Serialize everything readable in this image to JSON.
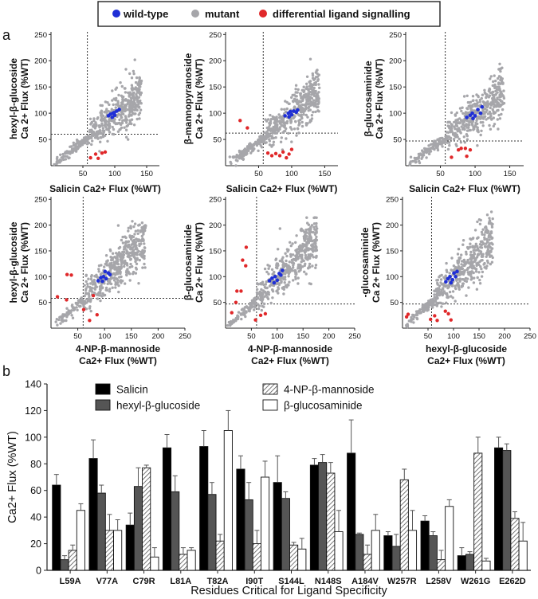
{
  "top_legend": [
    {
      "label": "wild-type",
      "color": "#1f2fd6"
    },
    {
      "label": "mutant",
      "color": "#a6a6aa"
    },
    {
      "label": "differential ligand signalling",
      "color": "#e0282a"
    }
  ],
  "panel_labels": {
    "a": "a",
    "b": "b"
  },
  "chart_data": [
    {
      "type": "scatter",
      "id": "s1",
      "title": "",
      "xlabel": [
        "Salicin Ca2+ Flux (%WT)"
      ],
      "ylabel": [
        "hexyl-β-glucoside",
        "Ca 2+ Flux (%WT)"
      ],
      "xlim": [
        0,
        170
      ],
      "ylim": [
        0,
        255
      ],
      "xticks": [
        "50",
        "100",
        "150"
      ],
      "yticks": [
        "50",
        "100",
        "150",
        "200",
        "250"
      ],
      "threshold_x": 57,
      "threshold_y": 60,
      "wildtype": [
        [
          90,
          95
        ],
        [
          93,
          98
        ],
        [
          97,
          100
        ],
        [
          100,
          96
        ],
        [
          103,
          104
        ],
        [
          96,
          92
        ],
        [
          99,
          101
        ],
        [
          107,
          107
        ]
      ],
      "differential": [
        [
          62,
          15
        ],
        [
          70,
          22
        ],
        [
          74,
          14
        ],
        [
          80,
          24
        ],
        [
          85,
          26
        ]
      ]
    },
    {
      "type": "scatter",
      "id": "s2",
      "title": "",
      "xlabel": [
        "Salicin Ca2+ Flux (%WT)"
      ],
      "ylabel": [
        "β-mannopyranoside",
        "Ca 2+ Flux (%WT)"
      ],
      "xlim": [
        0,
        170
      ],
      "ylim": [
        0,
        255
      ],
      "xticks": [
        "50",
        "100",
        "150"
      ],
      "yticks": [
        "50",
        "100",
        "150",
        "200",
        "250"
      ],
      "threshold_x": 57,
      "threshold_y": 62,
      "wildtype": [
        [
          90,
          95
        ],
        [
          95,
          100
        ],
        [
          98,
          103
        ],
        [
          100,
          97
        ],
        [
          103,
          104
        ],
        [
          96,
          93
        ],
        [
          109,
          106
        ],
        [
          107,
          102
        ]
      ],
      "differential": [
        [
          22,
          86
        ],
        [
          33,
          72
        ],
        [
          64,
          24
        ],
        [
          70,
          19
        ],
        [
          76,
          23
        ],
        [
          82,
          19
        ],
        [
          87,
          26
        ],
        [
          92,
          15
        ],
        [
          96,
          22
        ],
        [
          100,
          31
        ]
      ]
    },
    {
      "type": "scatter",
      "id": "s3",
      "title": "",
      "xlabel": [
        "Salicin Ca2+ Flux (%WT)"
      ],
      "ylabel": [
        "β-glucosaminide",
        "Ca 2+ Flux (%WT)"
      ],
      "xlim": [
        0,
        170
      ],
      "ylim": [
        0,
        255
      ],
      "xticks": [
        "50",
        "100",
        "150"
      ],
      "yticks": [
        "50",
        "100",
        "150",
        "200",
        "250"
      ],
      "threshold_x": 57,
      "threshold_y": 47,
      "wildtype": [
        [
          88,
          92
        ],
        [
          93,
          96
        ],
        [
          96,
          100
        ],
        [
          100,
          95
        ],
        [
          104,
          107
        ],
        [
          97,
          90
        ],
        [
          110,
          112
        ],
        [
          108,
          100
        ]
      ],
      "differential": [
        [
          66,
          16
        ],
        [
          76,
          30
        ],
        [
          80,
          33
        ],
        [
          86,
          33
        ],
        [
          88,
          18
        ],
        [
          93,
          30
        ]
      ]
    },
    {
      "type": "scatter",
      "id": "s4",
      "title": "",
      "xlabel": [
        "4-NP-β-mannoside",
        "Ca2+ Flux (%WT)"
      ],
      "ylabel": [
        "hexyl-β-glucoside",
        "Ca 2+ Flux (%WT)"
      ],
      "xlim": [
        0,
        250
      ],
      "ylim": [
        0,
        255
      ],
      "xticks": [
        "50",
        "100",
        "150",
        "200",
        "250"
      ],
      "yticks": [
        "50",
        "100",
        "150",
        "200",
        "250"
      ],
      "threshold_x": 60,
      "threshold_y": 58,
      "wildtype": [
        [
          88,
          92
        ],
        [
          93,
          98
        ],
        [
          98,
          100
        ],
        [
          103,
          96
        ],
        [
          107,
          107
        ],
        [
          96,
          91
        ],
        [
          101,
          110
        ],
        [
          110,
          104
        ]
      ],
      "differential": [
        [
          12,
          61
        ],
        [
          29,
          55
        ],
        [
          30,
          104
        ],
        [
          38,
          103
        ],
        [
          61,
          36
        ],
        [
          72,
          15
        ],
        [
          79,
          63
        ],
        [
          86,
          26
        ]
      ]
    },
    {
      "type": "scatter",
      "id": "s5",
      "title": "",
      "xlabel": [
        "4-NP-β-mannoside",
        "Ca2+ Flux (%WT)"
      ],
      "ylabel": [
        "β-glucosaminide",
        "Ca 2+ Flux (%WT)"
      ],
      "xlim": [
        0,
        250
      ],
      "ylim": [
        0,
        255
      ],
      "xticks": [
        "50",
        "100",
        "150",
        "200",
        "250"
      ],
      "yticks": [
        "50",
        "100",
        "150",
        "200",
        "250"
      ],
      "threshold_x": 60,
      "threshold_y": 47,
      "wildtype": [
        [
          85,
          92
        ],
        [
          90,
          97
        ],
        [
          96,
          100
        ],
        [
          100,
          93
        ],
        [
          104,
          106
        ],
        [
          94,
          88
        ],
        [
          110,
          112
        ],
        [
          107,
          103
        ]
      ],
      "differential": [
        [
          12,
          30
        ],
        [
          20,
          50
        ],
        [
          22,
          72
        ],
        [
          30,
          72
        ],
        [
          33,
          132
        ],
        [
          39,
          121
        ],
        [
          40,
          157
        ],
        [
          58,
          16
        ],
        [
          68,
          25
        ],
        [
          77,
          28
        ]
      ]
    },
    {
      "type": "scatter",
      "id": "s6",
      "title": "",
      "xlabel": [
        "hexyl-β-glucoside",
        "Ca2+ Flux (%WT)"
      ],
      "ylabel": [
        "-glucosaminide",
        "Ca 2+ Flux (%WT)"
      ],
      "xlim": [
        0,
        250
      ],
      "ylim": [
        0,
        255
      ],
      "xticks": [
        "50",
        "100",
        "150",
        "200",
        "250"
      ],
      "yticks": [
        "50",
        "100",
        "150",
        "200",
        "250"
      ],
      "threshold_x": 57,
      "threshold_y": 47,
      "wildtype": [
        [
          85,
          90
        ],
        [
          89,
          96
        ],
        [
          93,
          100
        ],
        [
          98,
          94
        ],
        [
          101,
          107
        ],
        [
          95,
          88
        ],
        [
          107,
          110
        ],
        [
          104,
          100
        ]
      ],
      "differential": [
        [
          8,
          22
        ],
        [
          11,
          27
        ],
        [
          55,
          17
        ],
        [
          63,
          24
        ],
        [
          68,
          15
        ],
        [
          84,
          33
        ],
        [
          90,
          28
        ],
        [
          95,
          16
        ]
      ]
    },
    {
      "type": "bar",
      "id": "bars",
      "title": "",
      "xlabel": "Residues Critical for Ligand Specificity",
      "ylabel": "Ca2+ Flux (%WT)",
      "ylim": [
        0,
        140
      ],
      "yticks": [
        "0",
        "20",
        "40",
        "60",
        "80",
        "100",
        "120",
        "140"
      ],
      "categories": [
        "L59A",
        "V77A",
        "C79R",
        "L81A",
        "T82A",
        "I90T",
        "S144L",
        "N148S",
        "A184V",
        "W257R",
        "L258V",
        "W261G",
        "E262D"
      ],
      "series": [
        {
          "name": "Salicin",
          "values": [
            64,
            84,
            34,
            92,
            93,
            76,
            66,
            79,
            88,
            26,
            37,
            11,
            92
          ],
          "errors": [
            8,
            14,
            9,
            10,
            12,
            10,
            20,
            5,
            25,
            3,
            4,
            6,
            8
          ]
        },
        {
          "name": "hexyl-β-glucoside",
          "values": [
            8,
            58,
            63,
            59,
            57,
            53,
            54,
            81,
            27,
            18,
            26,
            12,
            90
          ],
          "errors": [
            3,
            6,
            14,
            12,
            9,
            13,
            5,
            6,
            1,
            9,
            3,
            2,
            5
          ]
        },
        {
          "name": "4-NP-β-mannoside",
          "values": [
            15,
            30,
            77,
            12,
            22,
            20,
            19,
            73,
            12,
            68,
            8,
            88,
            39
          ],
          "errors": [
            4,
            12,
            2,
            5,
            5,
            10,
            2,
            8,
            7,
            8,
            7,
            12,
            5
          ]
        },
        {
          "name": "β-glucosaminide",
          "values": [
            45,
            30,
            10,
            15,
            105,
            70,
            16,
            29,
            30,
            30,
            48,
            7,
            22
          ],
          "errors": [
            5,
            8,
            7,
            2,
            15,
            12,
            8,
            16,
            12,
            15,
            5,
            2,
            14
          ]
        }
      ]
    }
  ]
}
